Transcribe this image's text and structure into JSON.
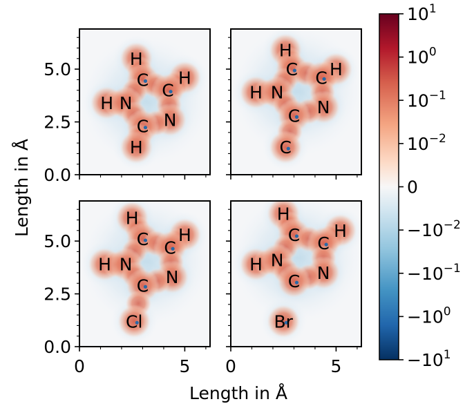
{
  "chart_data": {
    "type": "heatmap",
    "xlabel": "Length in Å",
    "ylabel": "Length in Å",
    "xlim": [
      0,
      6.2
    ],
    "ylim": [
      0,
      6.9
    ],
    "x_ticks": [
      {
        "v": 0,
        "label": "0"
      },
      {
        "v": 5,
        "label": "5"
      }
    ],
    "y_ticks": [
      {
        "v": 0,
        "label": "0.0"
      },
      {
        "v": 2.5,
        "label": "2.5"
      },
      {
        "v": 5,
        "label": "5.0"
      }
    ],
    "x_minor_step": 1,
    "y_minor_step": 0.5,
    "colorbar": {
      "scale": "symlog",
      "colormap": "RdBu_r",
      "range": [
        -10,
        10
      ],
      "ticks": [
        {
          "pos": 4,
          "label": "10",
          "sup": "1"
        },
        {
          "pos": 3,
          "label": "10",
          "sup": "0"
        },
        {
          "pos": 2,
          "label": "10",
          "sup": "−1"
        },
        {
          "pos": 1,
          "label": "10",
          "sup": "−2"
        },
        {
          "pos": 0,
          "label": "0",
          "sup": ""
        },
        {
          "pos": -1,
          "label": "−10",
          "sup": "−2"
        },
        {
          "pos": -2,
          "label": "−10",
          "sup": "−1"
        },
        {
          "pos": -3,
          "label": "−10",
          "sup": "0"
        },
        {
          "pos": -4,
          "label": "−10",
          "sup": "1"
        }
      ]
    },
    "panels": [
      {
        "atoms": [
          {
            "label": "H",
            "x": 2.7,
            "y": 5.5
          },
          {
            "label": "C",
            "x": 3.0,
            "y": 4.5
          },
          {
            "label": "H",
            "x": 5.0,
            "y": 4.6
          },
          {
            "label": "C",
            "x": 4.2,
            "y": 4.0
          },
          {
            "label": "H",
            "x": 1.3,
            "y": 3.4
          },
          {
            "label": "N",
            "x": 2.2,
            "y": 3.4
          },
          {
            "label": "N",
            "x": 4.3,
            "y": 2.6
          },
          {
            "label": "C",
            "x": 3.0,
            "y": 2.3
          },
          {
            "label": "H",
            "x": 2.7,
            "y": 1.3
          }
        ]
      },
      {
        "atoms": [
          {
            "label": "H",
            "x": 2.6,
            "y": 5.9
          },
          {
            "label": "C",
            "x": 2.9,
            "y": 5.0
          },
          {
            "label": "H",
            "x": 5.0,
            "y": 5.0
          },
          {
            "label": "C",
            "x": 4.3,
            "y": 4.6
          },
          {
            "label": "H",
            "x": 1.2,
            "y": 3.9
          },
          {
            "label": "N",
            "x": 2.2,
            "y": 3.9
          },
          {
            "label": "N",
            "x": 4.4,
            "y": 3.2
          },
          {
            "label": "C",
            "x": 3.0,
            "y": 2.8
          },
          {
            "label": "C",
            "x": 2.6,
            "y": 1.3
          }
        ]
      },
      {
        "atoms": [
          {
            "label": "H",
            "x": 2.5,
            "y": 6.1
          },
          {
            "label": "C",
            "x": 3.0,
            "y": 5.1
          },
          {
            "label": "H",
            "x": 5.0,
            "y": 5.3
          },
          {
            "label": "C",
            "x": 4.3,
            "y": 4.7
          },
          {
            "label": "H",
            "x": 1.2,
            "y": 3.9
          },
          {
            "label": "N",
            "x": 2.2,
            "y": 3.9
          },
          {
            "label": "N",
            "x": 4.4,
            "y": 3.3
          },
          {
            "label": "C",
            "x": 3.0,
            "y": 2.9
          },
          {
            "label": "Cl",
            "x": 2.6,
            "y": 1.2
          }
        ]
      },
      {
        "atoms": [
          {
            "label": "H",
            "x": 2.5,
            "y": 6.3
          },
          {
            "label": "C",
            "x": 3.0,
            "y": 5.3
          },
          {
            "label": "H",
            "x": 5.2,
            "y": 5.5
          },
          {
            "label": "C",
            "x": 4.4,
            "y": 4.9
          },
          {
            "label": "H",
            "x": 1.2,
            "y": 3.9
          },
          {
            "label": "N",
            "x": 2.2,
            "y": 4.1
          },
          {
            "label": "N",
            "x": 4.4,
            "y": 3.5
          },
          {
            "label": "C",
            "x": 3.0,
            "y": 3.1
          },
          {
            "label": "Br",
            "x": 2.5,
            "y": 1.2
          }
        ]
      }
    ]
  }
}
